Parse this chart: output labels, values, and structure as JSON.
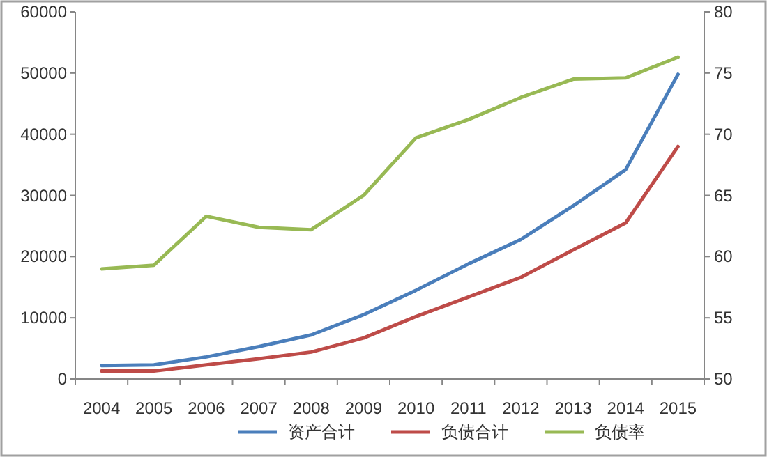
{
  "chart_data": {
    "type": "line",
    "categories": [
      "2004",
      "2005",
      "2006",
      "2007",
      "2008",
      "2009",
      "2010",
      "2011",
      "2012",
      "2013",
      "2014",
      "2015"
    ],
    "series": [
      {
        "name": "资产合计",
        "color": "#4a7ebb",
        "values": [
          2200,
          2300,
          3600,
          5300,
          7200,
          10500,
          14500,
          18800,
          22800,
          28300,
          34200,
          49800
        ]
      },
      {
        "name": "负债合计",
        "color": "#be4b48",
        "values": [
          1300,
          1300,
          2300,
          3300,
          4400,
          6700,
          10200,
          13400,
          16600,
          21100,
          25500,
          38000
        ]
      },
      {
        "name": "负债率",
        "color": "#98b954",
        "axis": "y2",
        "values": [
          59.0,
          59.3,
          63.3,
          62.4,
          62.2,
          65.0,
          69.7,
          71.2,
          73.0,
          74.5,
          74.6,
          76.3
        ]
      }
    ],
    "ylim": [
      0,
      60000
    ],
    "yticks": [
      0,
      10000,
      20000,
      30000,
      40000,
      50000,
      60000
    ],
    "y2lim": [
      50,
      80
    ],
    "y2ticks": [
      50,
      55,
      60,
      65,
      70,
      75,
      80
    ],
    "grid": false,
    "legend": "bottom"
  }
}
